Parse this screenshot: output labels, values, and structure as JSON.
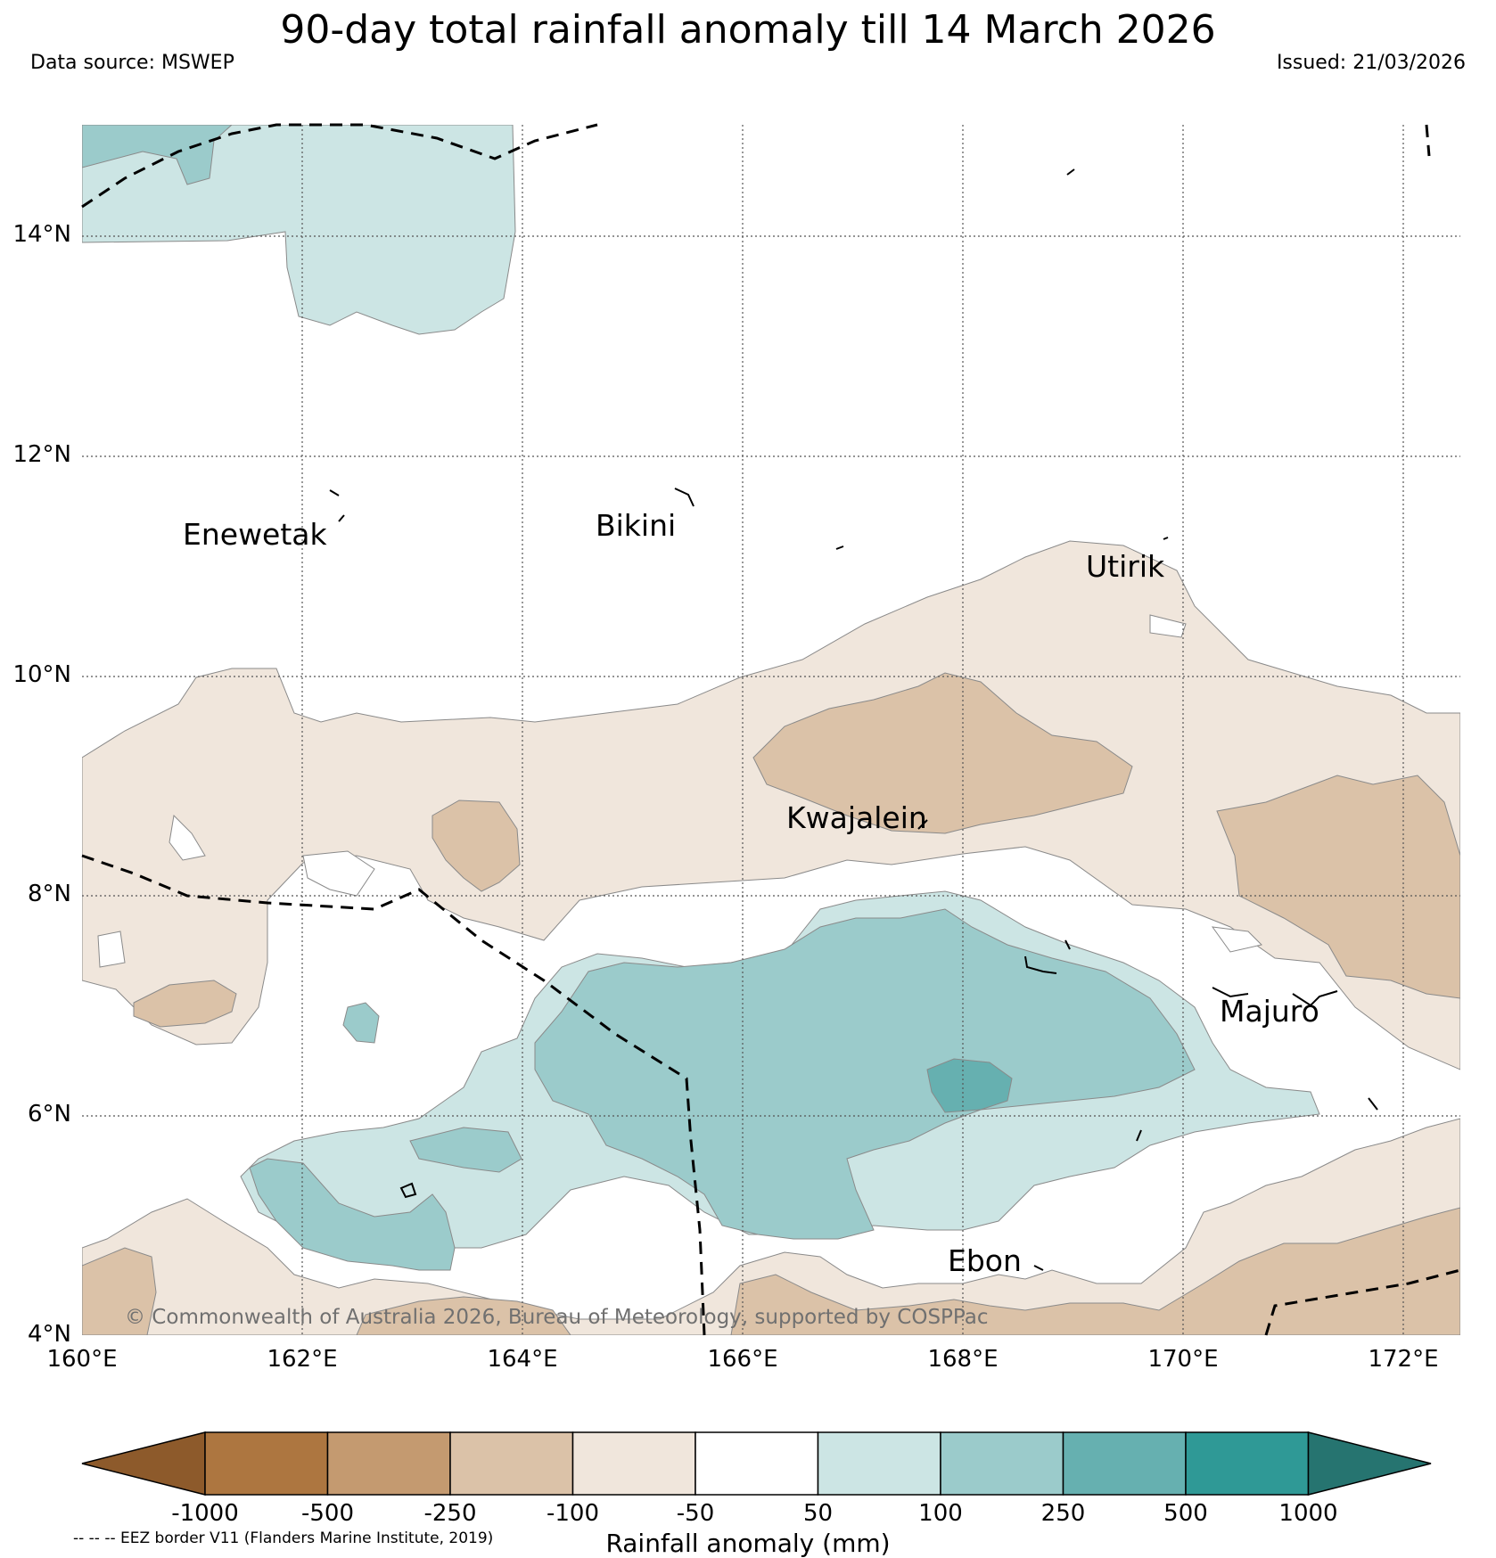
{
  "title": "90-day total rainfall anomaly till 14 March 2026",
  "data_source": "Data source: MSWEP",
  "issued": "Issued: 21/03/2026",
  "map": {
    "lon_range": [
      160,
      172.5
    ],
    "lat_range": [
      4,
      15
    ],
    "lat_ticks": [
      "14°N",
      "12°N",
      "10°N",
      "8°N",
      "6°N",
      "4°N"
    ],
    "lon_ticks": [
      "160°E",
      "162°E",
      "164°E",
      "166°E",
      "168°E",
      "170°E",
      "172°E"
    ],
    "places": {
      "enewetak": "Enewetak",
      "bikini": "Bikini",
      "utirik": "Utirik",
      "kwajalein": "Kwajalein",
      "majuro": "Majuro",
      "ebon": "Ebon"
    },
    "credit": "© Commonwealth of Australia 2026, Bureau of Meteorology, supported by COSPPac"
  },
  "colorbar": {
    "ticks": [
      "-1000",
      "-500",
      "-250",
      "-100",
      "-50",
      "50",
      "100",
      "250",
      "500",
      "1000"
    ],
    "colors": [
      "#8d5a2b",
      "#ad7640",
      "#c49a70",
      "#dbc2a8",
      "#f0e6dc",
      "#ffffff",
      "#cce5e4",
      "#9bcbcb",
      "#66b0b0",
      "#2f9996",
      "#267470"
    ],
    "label": "Rainfall anomaly (mm)"
  },
  "eez_note": "-- -- -- EEZ border V11 (Flanders Marine Institute, 2019)"
}
